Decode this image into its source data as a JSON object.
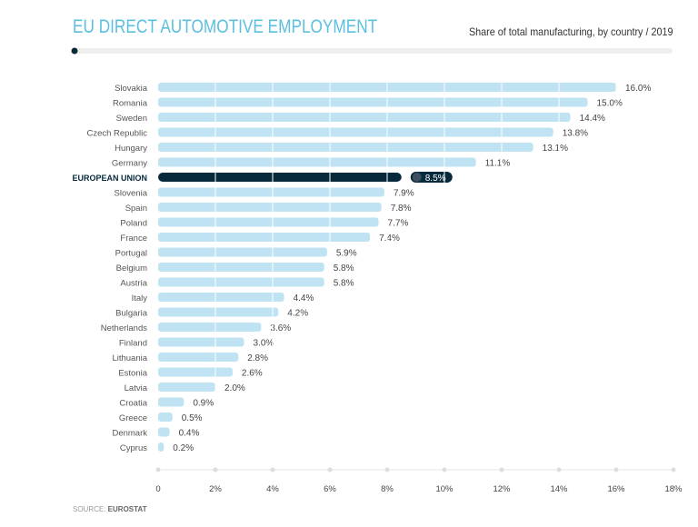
{
  "header": {
    "title": "EU DIRECT AUTOMOTIVE EMPLOYMENT",
    "subtitle": "Share of total manufacturing, by country / 2019"
  },
  "footer": {
    "source_label": "SOURCE: ",
    "source_name": "EUROSTAT"
  },
  "chart_data": {
    "type": "bar",
    "orientation": "horizontal",
    "categories": [
      "Slovakia",
      "Romania",
      "Sweden",
      "Czech Republic",
      "Hungary",
      "Germany",
      "EUROPEAN UNION",
      "Slovenia",
      "Spain",
      "Poland",
      "France",
      "Portugal",
      "Belgium",
      "Austria",
      "Italy",
      "Bulgaria",
      "Netherlands",
      "Finland",
      "Lithuania",
      "Estonia",
      "Latvia",
      "Croatia",
      "Greece",
      "Denmark",
      "Cyprus"
    ],
    "values": [
      16.0,
      15.0,
      14.4,
      13.8,
      13.1,
      11.1,
      8.5,
      7.9,
      7.8,
      7.7,
      7.4,
      5.9,
      5.8,
      5.8,
      4.4,
      4.2,
      3.6,
      3.0,
      2.8,
      2.6,
      2.0,
      0.9,
      0.5,
      0.4,
      0.2
    ],
    "labels": [
      "16.0%",
      "15.0%",
      "14.4%",
      "13.8%",
      "13.1%",
      "11.1%",
      "8.5%",
      "7.9%",
      "7.8%",
      "7.7%",
      "7.4%",
      "5.9%",
      "5.8%",
      "5.8%",
      "4.4%",
      "4.2%",
      "3.6%",
      "3.0%",
      "2.8%",
      "2.6%",
      "2.0%",
      "0.9%",
      "0.5%",
      "0.4%",
      "0.2%"
    ],
    "highlight": "EUROPEAN UNION",
    "xlim": [
      0,
      18
    ],
    "xticks": [
      0,
      2,
      4,
      6,
      8,
      10,
      12,
      14,
      16,
      18
    ],
    "xtick_labels": [
      "0",
      "2%",
      "4%",
      "6%",
      "8%",
      "10%",
      "12%",
      "14%",
      "16%",
      "18%"
    ],
    "grid": true,
    "colors": {
      "bar": "#bfe3f2",
      "highlight": "#062a3c",
      "title": "#5bc0e0"
    }
  }
}
